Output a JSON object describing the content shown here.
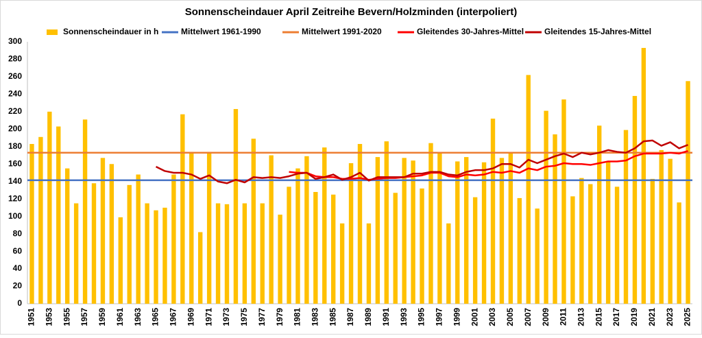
{
  "chart_data": {
    "type": "bar",
    "title": "Sonnenscheindauer April Zeitreihe Bevern/Holzminden (interpoliert)",
    "categories": [
      "1951",
      null,
      "1953",
      null,
      "1955",
      null,
      "1957",
      null,
      "1959",
      null,
      "1961",
      null,
      "1963",
      null,
      "1965",
      null,
      "1967",
      null,
      "1969",
      null,
      "1971",
      null,
      "1973",
      null,
      "1975",
      null,
      "1977",
      null,
      "1979",
      null,
      "1981",
      null,
      "1983",
      null,
      "1985",
      null,
      "1987",
      null,
      "1989",
      null,
      "1991",
      null,
      "1993",
      null,
      "1995",
      null,
      "1997",
      null,
      "1999",
      null,
      "2001",
      null,
      "2003",
      null,
      "2005",
      null,
      "2007",
      null,
      "2009",
      null,
      "2011",
      null,
      "2013",
      null,
      "2015",
      null,
      "2017",
      null,
      "2019",
      null,
      "2021",
      null,
      "2023",
      null,
      "2025"
    ],
    "series": [
      {
        "name": "Sonnenscheindauer in h",
        "type": "bar",
        "color": "#ffc000",
        "values": [
          183,
          191,
          220,
          203,
          155,
          115,
          211,
          138,
          167,
          160,
          99,
          136,
          148,
          115,
          107,
          110,
          148,
          217,
          174,
          82,
          174,
          115,
          114,
          223,
          115,
          189,
          115,
          170,
          102,
          134,
          155,
          169,
          128,
          179,
          125,
          92,
          161,
          183,
          92,
          168,
          186,
          127,
          167,
          164,
          132,
          184,
          172,
          92,
          163,
          168,
          122,
          162,
          212,
          167,
          172,
          121,
          262,
          109,
          221,
          194,
          234,
          123,
          144,
          137,
          204,
          163,
          134,
          199,
          238,
          293,
          143,
          176,
          166,
          116,
          255
        ]
      },
      {
        "name": "Mittelwert 1961-1990",
        "type": "hline",
        "color": "#4472c4",
        "value": 141.5
      },
      {
        "name": "Mittelwert 1991-2020",
        "type": "hline",
        "color": "#ed7d31",
        "value": 173
      },
      {
        "name": "Gleitendes 30-Jahres-Mittel",
        "type": "line",
        "color": "#ff0000",
        "values": [
          null,
          null,
          null,
          null,
          null,
          null,
          null,
          null,
          null,
          null,
          null,
          null,
          null,
          null,
          null,
          null,
          null,
          null,
          null,
          null,
          null,
          null,
          null,
          null,
          null,
          null,
          null,
          null,
          null,
          151,
          150,
          150,
          146,
          145,
          145,
          143,
          143,
          144,
          142,
          143,
          144,
          144,
          145,
          146,
          147,
          150,
          150,
          146,
          145,
          148,
          147,
          148,
          151,
          150,
          152,
          150,
          155,
          153,
          157,
          158,
          161,
          160,
          160,
          159,
          161,
          163,
          163,
          164,
          169,
          172,
          172,
          172,
          173,
          172,
          175
        ]
      },
      {
        "name": "Gleitendes 15-Jahres-Mittel",
        "type": "line",
        "color": "#c00000",
        "values": [
          null,
          null,
          null,
          null,
          null,
          null,
          null,
          null,
          null,
          null,
          null,
          null,
          null,
          null,
          157,
          152,
          150,
          150,
          148,
          143,
          147,
          140,
          138,
          142,
          139,
          145,
          144,
          145,
          144,
          146,
          149,
          150,
          143,
          145,
          148,
          142,
          145,
          150,
          141,
          145,
          145,
          145,
          145,
          149,
          149,
          151,
          151,
          148,
          147,
          151,
          153,
          153,
          155,
          160,
          160,
          156,
          165,
          161,
          165,
          169,
          172,
          168,
          173,
          171,
          173,
          176,
          174,
          173,
          178,
          186,
          187,
          181,
          185,
          178,
          182
        ]
      }
    ],
    "ylim": [
      0,
      300
    ],
    "yticks": [
      0,
      20,
      40,
      60,
      80,
      100,
      120,
      140,
      160,
      180,
      200,
      220,
      240,
      260,
      280,
      300
    ],
    "grid": false
  }
}
